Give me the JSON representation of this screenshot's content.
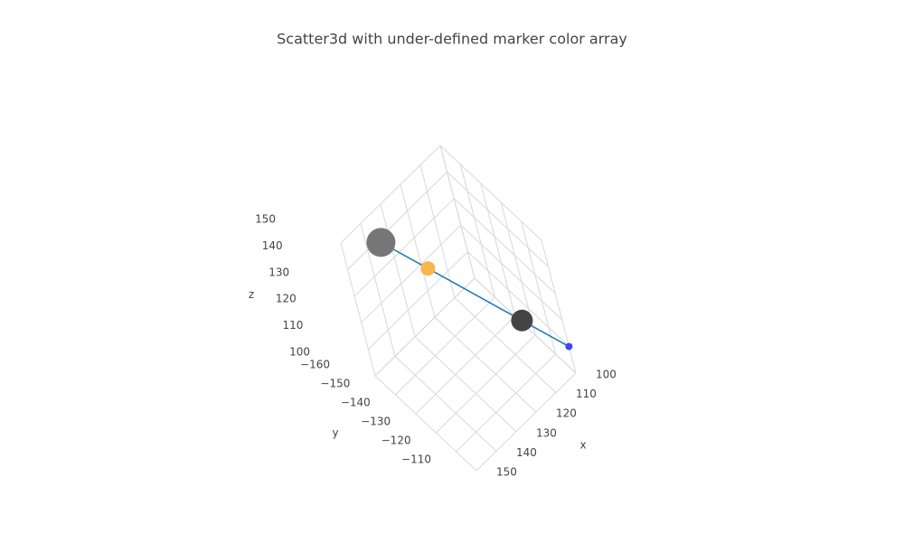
{
  "chart_data": {
    "type": "scatter3d",
    "title": "Scatter3d with under-defined marker color array",
    "xaxis_title": "x",
    "yaxis_title": "y",
    "zaxis_title": "z",
    "series": [
      {
        "x": [
          140,
          130,
          110,
          100
        ],
        "y": [
          -150,
          -140,
          -120,
          -110
        ],
        "z": [
          150,
          140,
          120,
          110
        ],
        "sizes": [
          32,
          16,
          24,
          8
        ],
        "colors": [
          "#777777",
          "#f9b64b",
          "#444444",
          "#3d46f5"
        ],
        "line_color": "#1f77b4"
      }
    ],
    "xlim": [
      100,
      150
    ],
    "ylim": [
      -160,
      -110
    ],
    "zlim": [
      100,
      150
    ],
    "xticks": [
      100,
      110,
      120,
      130,
      140,
      150
    ],
    "yticks": [
      {
        "value": -160,
        "label": "−160"
      },
      {
        "value": -150,
        "label": "−150"
      },
      {
        "value": -140,
        "label": "−140"
      },
      {
        "value": -130,
        "label": "−130"
      },
      {
        "value": -120,
        "label": "−120"
      },
      {
        "value": -110,
        "label": "−110"
      }
    ],
    "zticks": [
      100,
      110,
      120,
      130,
      140,
      150
    ],
    "grid": true
  }
}
